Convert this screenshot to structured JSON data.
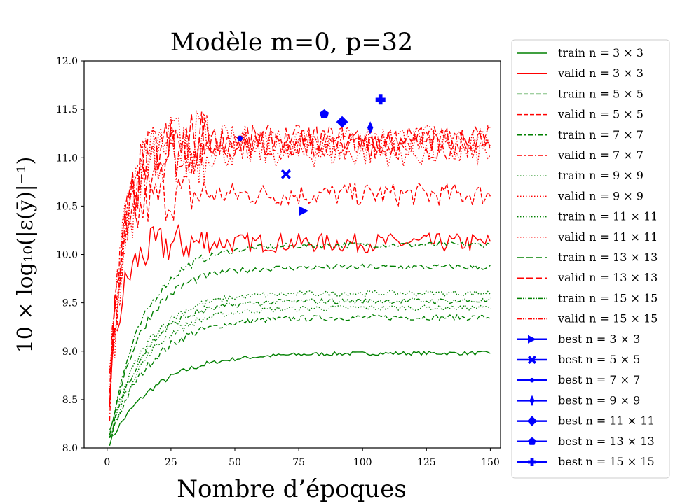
{
  "chart_data": {
    "type": "line",
    "title": "Modèle m=0, p=32",
    "xlabel": "Nombre d’époques",
    "ylabel": "10 × log₁₀(|ε(ȳ)|⁻¹)",
    "xlim": [
      -9,
      154
    ],
    "ylim": [
      8.0,
      12.0
    ],
    "xticks": [
      0,
      25,
      50,
      75,
      100,
      125,
      150
    ],
    "xtick_labels": [
      "0",
      "25",
      "50",
      "75",
      "100",
      "125",
      "150"
    ],
    "yticks": [
      8.0,
      8.5,
      9.0,
      9.5,
      10.0,
      10.5,
      11.0,
      11.5,
      12.0
    ],
    "ytick_labels": [
      "8.0",
      "8.5",
      "9.0",
      "9.5",
      "10.0",
      "10.5",
      "11.0",
      "11.5",
      "12.0"
    ],
    "grid": false,
    "legend_position": "right-outside",
    "colors": {
      "train": "#008000",
      "valid": "#ff0000",
      "best": "#0000ff"
    },
    "series": [
      {
        "name": "train n = 3 × 3",
        "kind": "train",
        "dash": "solid",
        "start": 8.0,
        "plateau": 8.98,
        "rate": 18,
        "noise": 0.02
      },
      {
        "name": "valid n = 3 × 3",
        "kind": "valid",
        "dash": "solid",
        "start": 8.2,
        "plateau": 10.12,
        "rate": 5,
        "noise": 0.1
      },
      {
        "name": "train n = 5 × 5",
        "kind": "train",
        "dash": "dashed",
        "start": 8.0,
        "plateau": 9.35,
        "rate": 16,
        "noise": 0.03
      },
      {
        "name": "valid n = 5 × 5",
        "kind": "valid",
        "dash": "dashed",
        "start": 8.1,
        "plateau": 10.62,
        "rate": 5,
        "noise": 0.12
      },
      {
        "name": "train n = 7 × 7",
        "kind": "train",
        "dash": "dashdot",
        "start": 8.0,
        "plateau": 10.1,
        "rate": 14,
        "noise": 0.03
      },
      {
        "name": "valid n = 7 × 7",
        "kind": "valid",
        "dash": "dashdot",
        "start": 8.1,
        "plateau": 11.12,
        "rate": 6,
        "noise": 0.14
      },
      {
        "name": "train n = 9 × 9",
        "kind": "train",
        "dash": "dotted",
        "start": 8.0,
        "plateau": 9.45,
        "rate": 15,
        "noise": 0.03
      },
      {
        "name": "valid n = 9 × 9",
        "kind": "valid",
        "dash": "dotted",
        "start": 8.1,
        "plateau": 11.05,
        "rate": 6,
        "noise": 0.15
      },
      {
        "name": "train n = 11 × 11",
        "kind": "train",
        "dash": "dotted",
        "start": 8.0,
        "plateau": 9.6,
        "rate": 14,
        "noise": 0.03
      },
      {
        "name": "valid n = 11 × 11",
        "kind": "valid",
        "dash": "dotted",
        "start": 8.1,
        "plateau": 11.2,
        "rate": 6,
        "noise": 0.14
      },
      {
        "name": "train n = 13 × 13",
        "kind": "train",
        "dash": "loosedash",
        "start": 8.0,
        "plateau": 9.87,
        "rate": 13,
        "noise": 0.03
      },
      {
        "name": "valid n = 13 × 13",
        "kind": "valid",
        "dash": "loosedash",
        "start": 8.1,
        "plateau": 11.2,
        "rate": 6,
        "noise": 0.14
      },
      {
        "name": "train n = 15 × 15",
        "kind": "train",
        "dash": "dashdotdot",
        "start": 8.0,
        "plateau": 9.52,
        "rate": 14,
        "noise": 0.03
      },
      {
        "name": "valid n = 15 × 15",
        "kind": "valid",
        "dash": "dashdotdot",
        "start": 8.1,
        "plateau": 11.15,
        "rate": 6,
        "noise": 0.14
      }
    ],
    "best_points": [
      {
        "name": "best n = 3 × 3",
        "marker": "triangle-right",
        "x": 77,
        "y": 10.45
      },
      {
        "name": "best n = 5 × 5",
        "marker": "x-filled",
        "x": 70,
        "y": 10.83
      },
      {
        "name": "best n = 7 × 7",
        "marker": "point",
        "x": 52,
        "y": 11.2
      },
      {
        "name": "best n = 9 × 9",
        "marker": "thin-diamond",
        "x": 103,
        "y": 11.31
      },
      {
        "name": "best n = 11 × 11",
        "marker": "diamond",
        "x": 92,
        "y": 11.37
      },
      {
        "name": "best n = 13 × 13",
        "marker": "pentagon",
        "x": 85,
        "y": 11.45
      },
      {
        "name": "best n = 15 × 15",
        "marker": "plus-filled",
        "x": 107,
        "y": 11.6
      }
    ]
  }
}
